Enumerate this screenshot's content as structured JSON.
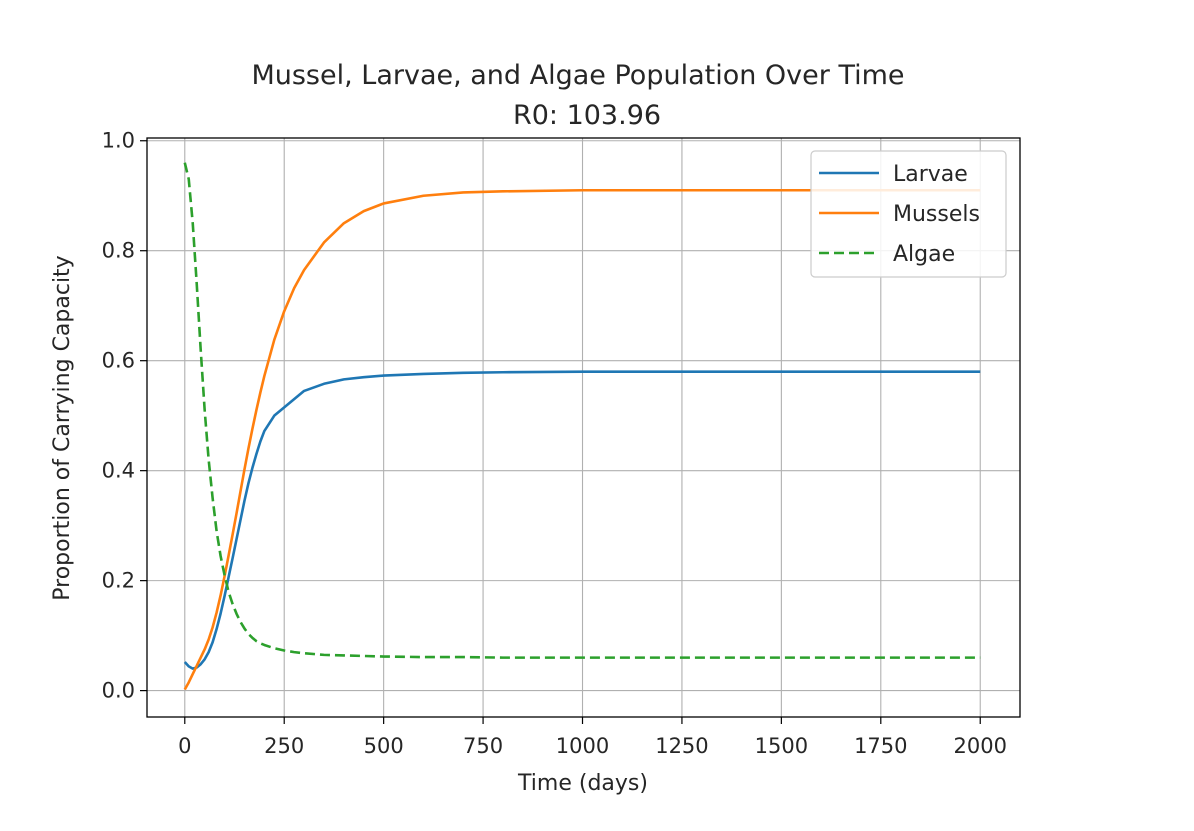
{
  "chart_data": {
    "type": "line",
    "title": "Mussel, Larvae, and Algae Population Over Time",
    "subtitle": "R0: 103.96",
    "xlabel": "Time (days)",
    "ylabel": "Proportion of Carrying Capacity",
    "xlim": [
      -95,
      2100
    ],
    "ylim": [
      -0.048,
      1.005
    ],
    "xticks": [
      0,
      250,
      500,
      750,
      1000,
      1250,
      1500,
      1750,
      2000
    ],
    "xtick_labels": [
      "0",
      "250",
      "500",
      "750",
      "1000",
      "1250",
      "1500",
      "1750",
      "2000"
    ],
    "yticks": [
      0.0,
      0.2,
      0.4,
      0.6,
      0.8,
      1.0
    ],
    "ytick_labels": [
      "0.0",
      "0.2",
      "0.4",
      "0.6",
      "0.8",
      "1.0"
    ],
    "grid": true,
    "legend_position": "top-right",
    "series": [
      {
        "name": "Larvae",
        "color": "#1f77b4",
        "style": "solid",
        "x": [
          0,
          10,
          20,
          30,
          40,
          50,
          60,
          70,
          80,
          90,
          100,
          110,
          120,
          130,
          140,
          150,
          160,
          170,
          180,
          190,
          200,
          225,
          250,
          275,
          300,
          350,
          400,
          450,
          500,
          600,
          700,
          800,
          1000,
          1250,
          1500,
          1750,
          2000
        ],
        "y": [
          0.052,
          0.044,
          0.04,
          0.042,
          0.048,
          0.057,
          0.07,
          0.088,
          0.112,
          0.14,
          0.172,
          0.206,
          0.24,
          0.275,
          0.31,
          0.345,
          0.377,
          0.405,
          0.43,
          0.453,
          0.472,
          0.5,
          0.515,
          0.53,
          0.545,
          0.558,
          0.566,
          0.57,
          0.573,
          0.576,
          0.578,
          0.579,
          0.58,
          0.58,
          0.58,
          0.58,
          0.58
        ]
      },
      {
        "name": "Mussels",
        "color": "#ff7f0e",
        "style": "solid",
        "x": [
          0,
          10,
          20,
          30,
          40,
          50,
          60,
          70,
          80,
          90,
          100,
          110,
          120,
          130,
          140,
          150,
          160,
          170,
          180,
          190,
          200,
          225,
          250,
          275,
          300,
          350,
          400,
          450,
          500,
          600,
          700,
          800,
          1000,
          1250,
          1500,
          1750,
          2000
        ],
        "y": [
          0.002,
          0.015,
          0.03,
          0.045,
          0.06,
          0.075,
          0.093,
          0.115,
          0.142,
          0.173,
          0.208,
          0.245,
          0.283,
          0.322,
          0.362,
          0.402,
          0.44,
          0.476,
          0.51,
          0.542,
          0.572,
          0.638,
          0.69,
          0.732,
          0.765,
          0.815,
          0.85,
          0.872,
          0.886,
          0.9,
          0.906,
          0.908,
          0.91,
          0.91,
          0.91,
          0.91,
          0.91
        ]
      },
      {
        "name": "Algae",
        "color": "#2ca02c",
        "style": "dashed",
        "x": [
          0,
          10,
          20,
          30,
          40,
          50,
          60,
          70,
          80,
          90,
          100,
          110,
          120,
          130,
          140,
          150,
          160,
          170,
          180,
          190,
          200,
          225,
          250,
          275,
          300,
          350,
          400,
          450,
          500,
          600,
          700,
          800,
          1000,
          1250,
          1500,
          1750,
          2000
        ],
        "y": [
          0.96,
          0.93,
          0.85,
          0.74,
          0.62,
          0.51,
          0.42,
          0.35,
          0.29,
          0.245,
          0.21,
          0.18,
          0.158,
          0.14,
          0.125,
          0.113,
          0.103,
          0.096,
          0.09,
          0.086,
          0.083,
          0.077,
          0.073,
          0.07,
          0.068,
          0.065,
          0.064,
          0.063,
          0.062,
          0.061,
          0.061,
          0.06,
          0.06,
          0.06,
          0.06,
          0.06,
          0.06
        ]
      }
    ]
  }
}
